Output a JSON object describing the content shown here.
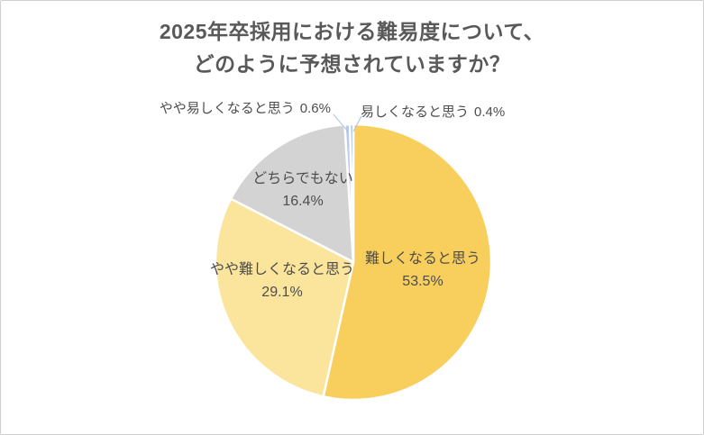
{
  "title": {
    "line1": "2025年卒採用における難易度について、",
    "line2": "どのように予想されていますか？",
    "color": "#595959"
  },
  "card": {
    "background": "#FFFFFF",
    "border_color": "#CFCFCF"
  },
  "chart_data": {
    "type": "pie",
    "title": "2025年卒採用における難易度について、どのように予想されていますか？",
    "unit": "%",
    "start_angle_deg": 0,
    "direction": "clockwise",
    "legend": "none",
    "gap_color": "#FFFFFF",
    "leader_line_color": "#A9C3E4",
    "label_color": "#4D4D4D",
    "slices": [
      {
        "label": "難しくなると思う",
        "value": 53.5,
        "display": "53.5%",
        "color": "#F8CE5D",
        "label_placement": "inside"
      },
      {
        "label": "やや難しくなると思う",
        "value": 29.1,
        "display": "29.1%",
        "color": "#FBE49B",
        "label_placement": "inside"
      },
      {
        "label": "どちらでもない",
        "value": 16.4,
        "display": "16.4%",
        "color": "#D3D3D4",
        "label_placement": "inside"
      },
      {
        "label": "やや易しくなると思う",
        "value": 0.6,
        "display": "0.6%",
        "color": "#B9CCE7",
        "label_placement": "outside-left"
      },
      {
        "label": "易しくなると思う",
        "value": 0.4,
        "display": "0.4%",
        "color": "#9DBADF",
        "label_placement": "outside-right"
      }
    ]
  }
}
